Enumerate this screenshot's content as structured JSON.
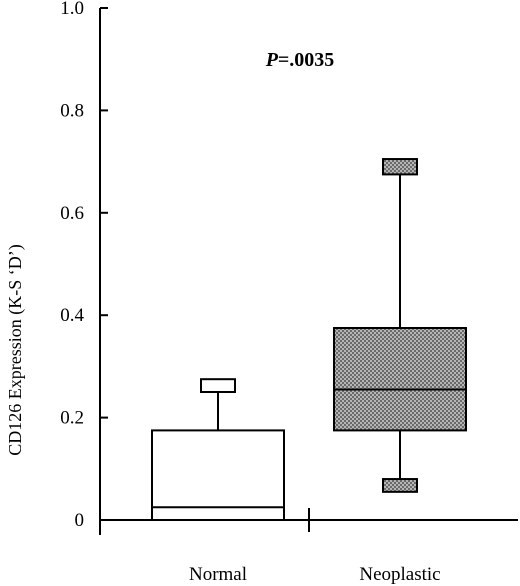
{
  "chart_data": {
    "type": "box",
    "ylabel": "CD126 Expression (K-S ‘D’)",
    "annotation_prefix": "P",
    "annotation_value": "=.0035",
    "ylim": [
      0,
      1.0
    ],
    "yticks": [
      "0",
      "0.2",
      "0.4",
      "0.6",
      "0.8",
      "1.0"
    ],
    "ytick_values": [
      0,
      0.2,
      0.4,
      0.6,
      0.8,
      1.0
    ],
    "categories": [
      "Normal",
      "Neoplastic"
    ],
    "boxes": [
      {
        "name": "Normal",
        "min": 0.0,
        "q1": 0.0,
        "median": 0.025,
        "q3": 0.175,
        "max": 0.275,
        "whisker_cap_low": null,
        "whisker_cap_high": [
          0.25,
          0.275
        ],
        "fill": "#ffffff"
      },
      {
        "name": "Neoplastic",
        "min": 0.065,
        "q1": 0.175,
        "median": 0.255,
        "q3": 0.375,
        "max": 0.69,
        "whisker_cap_low": [
          0.055,
          0.08
        ],
        "whisker_cap_high": [
          0.675,
          0.705
        ],
        "fill": "#9a9a9a"
      }
    ],
    "grid": false,
    "legend": "none"
  }
}
